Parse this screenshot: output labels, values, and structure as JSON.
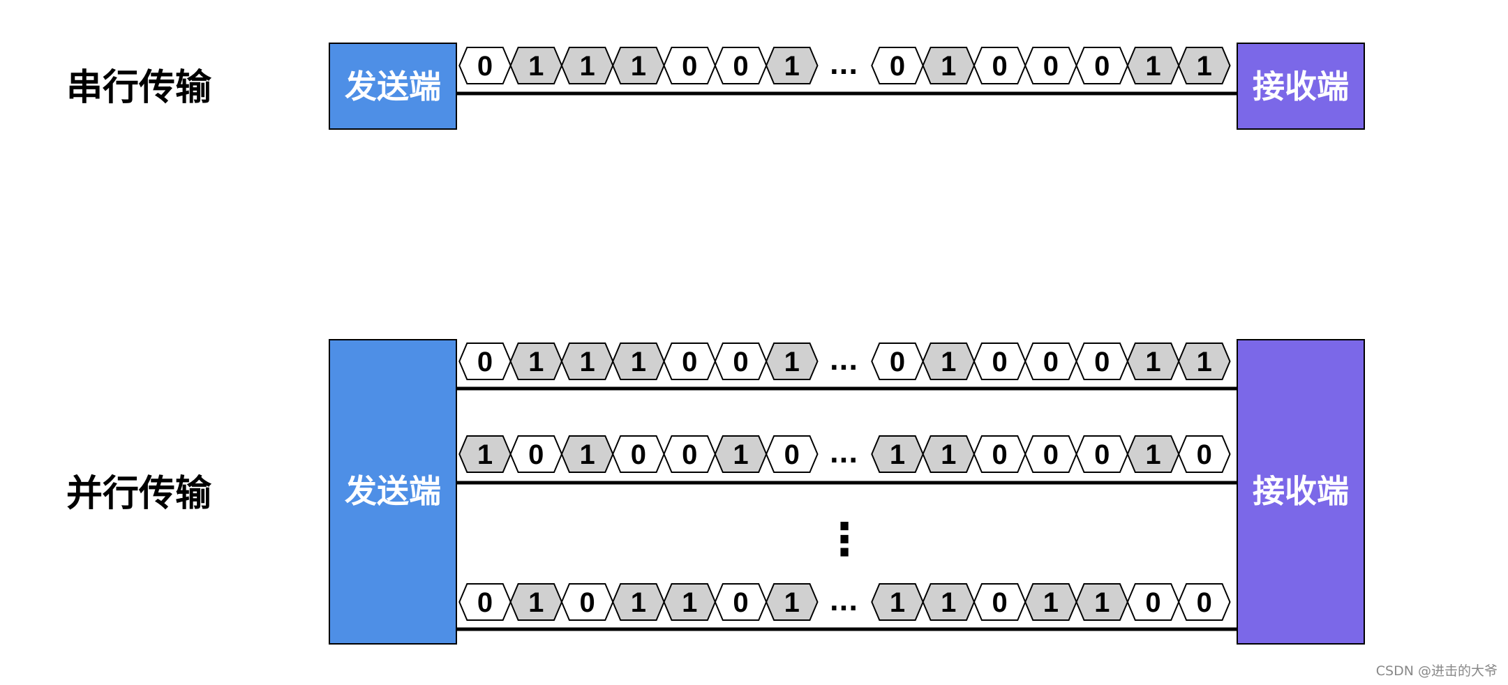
{
  "colors": {
    "sender": "#4e8fe6",
    "receiver": "#7b68e8",
    "bit_one_fill": "#d0d0d0",
    "bit_zero_fill": "#ffffff",
    "line": "#000000"
  },
  "serial": {
    "label": "串行传输",
    "sender_label": "发送端",
    "receiver_label": "接收端",
    "ellipsis": "...",
    "lanes": [
      {
        "left_bits": [
          "0",
          "1",
          "1",
          "1",
          "0",
          "0",
          "1"
        ],
        "right_bits": [
          "0",
          "1",
          "0",
          "0",
          "0",
          "1",
          "1"
        ]
      }
    ]
  },
  "parallel": {
    "label": "并行传输",
    "sender_label": "发送端",
    "receiver_label": "接收端",
    "ellipsis": "...",
    "vertical_ellipsis": "⋮",
    "lanes": [
      {
        "left_bits": [
          "0",
          "1",
          "1",
          "1",
          "0",
          "0",
          "1"
        ],
        "right_bits": [
          "0",
          "1",
          "0",
          "0",
          "0",
          "1",
          "1"
        ]
      },
      {
        "left_bits": [
          "1",
          "0",
          "1",
          "0",
          "0",
          "1",
          "0"
        ],
        "right_bits": [
          "1",
          "1",
          "0",
          "0",
          "0",
          "1",
          "0"
        ]
      },
      {
        "left_bits": [
          "0",
          "1",
          "0",
          "1",
          "1",
          "0",
          "1"
        ],
        "right_bits": [
          "1",
          "1",
          "0",
          "1",
          "1",
          "0",
          "0"
        ]
      }
    ]
  },
  "watermark": "CSDN @进击的大爷"
}
